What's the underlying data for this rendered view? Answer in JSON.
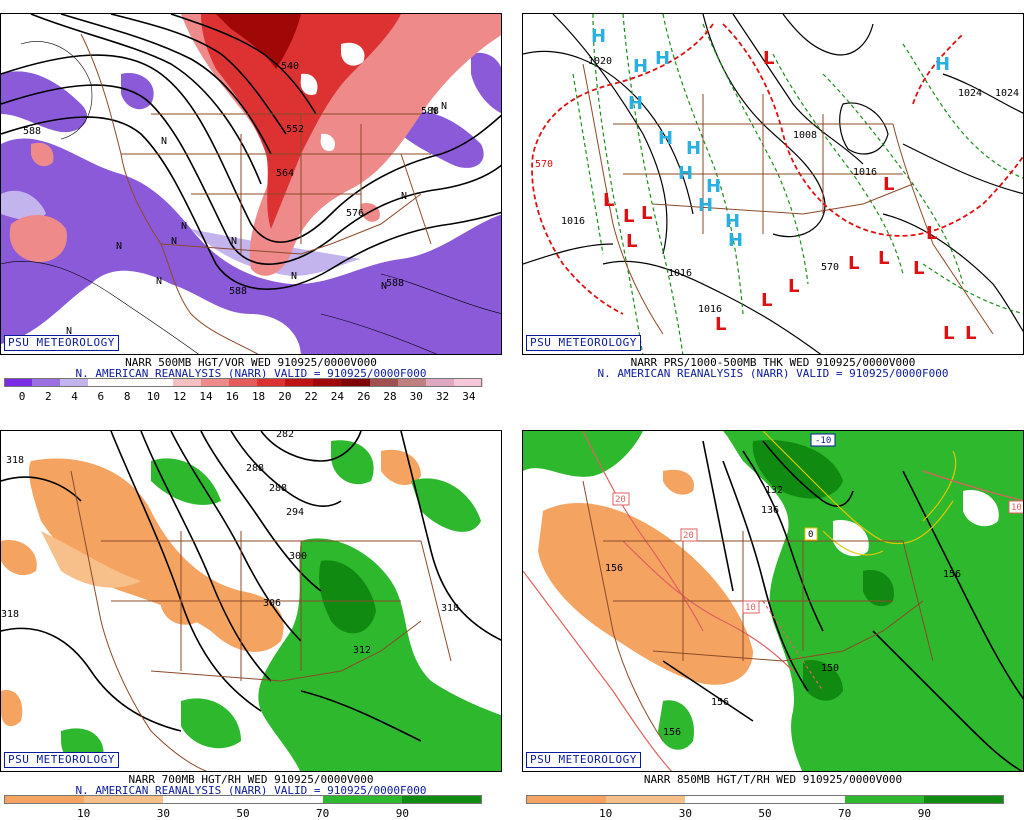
{
  "panels": [
    {
      "branding": "PSU METEOROLOGY",
      "caption_line1": "NARR 500MB HGT/VOR WED 910925/0000V000",
      "caption_line2": "N. AMERICAN REANALYSIS (NARR) VALID = 910925/0000F000",
      "contour_labels": [
        "540",
        "552",
        "564",
        "576",
        "588",
        "588",
        "588",
        "588"
      ],
      "feature_marks": [
        "N",
        "N",
        "N",
        "N",
        "N",
        "N",
        "N",
        "N",
        "N",
        "N",
        "N",
        "N"
      ],
      "colorbar": {
        "colors": [
          "#7b2be6",
          "#9b6fe0",
          "#c4b4ee",
          "#ffffff",
          "#ffffff",
          "#ffffff",
          "#f6c0c0",
          "#ef8a8a",
          "#e65c5c",
          "#dc3232",
          "#c01414",
          "#a00808",
          "#800000",
          "#a05050",
          "#c08080",
          "#e0a8c0",
          "#f4c8d8"
        ],
        "labels": [
          "0",
          "2",
          "4",
          "6",
          "8",
          "10",
          "12",
          "14",
          "16",
          "18",
          "20",
          "22",
          "24",
          "26",
          "28",
          "30",
          "32",
          "34"
        ]
      }
    },
    {
      "branding": "PSU METEOROLOGY",
      "caption_line1": "NARR PRS/1000-500MB THK WED 910925/0000V000",
      "caption_line2": "N. AMERICAN REANALYSIS (NARR) VALID = 910925/0000F000",
      "contour_labels": [
        "1024",
        "1020",
        "1008",
        "1016",
        "1016",
        "1016",
        "1016",
        "1024",
        "570",
        "570"
      ],
      "highs": [
        "H",
        "H",
        "H",
        "H",
        "H",
        "H",
        "H",
        "H",
        "H",
        "H",
        "H",
        "H"
      ],
      "lows": [
        "L",
        "L",
        "L",
        "L",
        "L",
        "L",
        "L",
        "L",
        "L",
        "L",
        "L",
        "L",
        "L",
        "L",
        "L"
      ]
    },
    {
      "branding": "PSU METEOROLOGY",
      "caption_line1": "NARR 700MB HGT/RH WED 910925/0000V000",
      "caption_line2": "N. AMERICAN REANALYSIS (NARR) VALID = 910925/0000F000",
      "contour_labels": [
        "282",
        "288",
        "288",
        "294",
        "300",
        "306",
        "312",
        "318",
        "318",
        "318"
      ],
      "colorbar": {
        "colors": [
          "#f4a460",
          "#f7c08a",
          "#ffffff",
          "#ffffff",
          "#2db82d",
          "#118a11"
        ],
        "labels": [
          "10",
          "30",
          "50",
          "70",
          "90"
        ]
      }
    },
    {
      "branding": "PSU METEOROLOGY",
      "caption_line1": "NARR 850MB HGT/T/RH WED 910925/0000V000",
      "contour_labels": [
        "132",
        "136",
        "150",
        "156",
        "156",
        "156",
        "156"
      ],
      "temp_labels": [
        "-10",
        "0",
        "10",
        "20",
        "20",
        "10"
      ],
      "colorbar": {
        "colors": [
          "#f4a460",
          "#f7c08a",
          "#ffffff",
          "#ffffff",
          "#2db82d",
          "#118a11"
        ],
        "labels": [
          "10",
          "30",
          "50",
          "70",
          "90"
        ]
      }
    }
  ]
}
